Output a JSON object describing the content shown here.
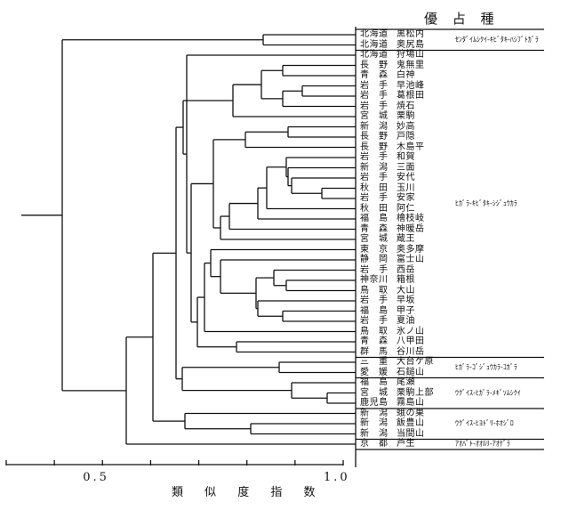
{
  "header": "優 占 種",
  "rows": [
    [
      "北海道",
      "黒松内"
    ],
    [
      "北海道",
      "奥尻島"
    ],
    [
      "北海道",
      "狩場山"
    ],
    [
      "長　野",
      "鬼無里"
    ],
    [
      "青　森",
      "白神"
    ],
    [
      "岩　手",
      "早池峰"
    ],
    [
      "岩　手",
      "葛根田"
    ],
    [
      "岩　手",
      "焼石"
    ],
    [
      "宮　城",
      "栗駒"
    ],
    [
      "新　潟",
      "妙高"
    ],
    [
      "長　野",
      "戸隠"
    ],
    [
      "長　野",
      "木島平"
    ],
    [
      "岩　手",
      "和賀"
    ],
    [
      "新　潟",
      "三面"
    ],
    [
      "岩　手",
      "安代"
    ],
    [
      "秋　田",
      "玉川"
    ],
    [
      "岩　手",
      "安家"
    ],
    [
      "秋　田",
      "阿仁"
    ],
    [
      "福　島",
      "檜枝岐"
    ],
    [
      "青　森",
      "神暖岳"
    ],
    [
      "宮　城",
      "蔵王"
    ],
    [
      "東　京",
      "奥多摩"
    ],
    [
      "静　岡",
      "富士山"
    ],
    [
      "岩　手",
      "西岳"
    ],
    [
      "神奈川",
      "箱根"
    ],
    [
      "鳥　取",
      "大山"
    ],
    [
      "岩　手",
      "早坂"
    ],
    [
      "福　島",
      "甲子"
    ],
    [
      "岩　手",
      "夏油"
    ],
    [
      "鳥　取",
      "氷ノ山"
    ],
    [
      "青　森",
      "八甲田"
    ],
    [
      "群　馬",
      "谷川岳"
    ],
    [
      "三　重",
      "大台ケ原"
    ],
    [
      "愛　媛",
      "石鎚山"
    ],
    [
      "福　島",
      "尾瀬"
    ],
    [
      "宮　城",
      "栗駒上部"
    ],
    [
      "鹿児島",
      "霧島山"
    ],
    [
      "新　潟",
      "蛾の巣"
    ],
    [
      "新　潟",
      "飯豊山"
    ],
    [
      "新　潟",
      "当間山"
    ],
    [
      "京　都",
      "芦生"
    ]
  ],
  "groups": [
    {
      "species": "ｾﾝﾀﾞｲﾑｼｸｲ-ｷﾋﾞﾀｷ-ﾊｼﾌﾞﾄｶﾞﾗ"
    },
    {
      "species": "ﾋｶﾞﾗ-ｷﾋﾞﾀｷ-ｼｼﾞｭｳｶﾗ"
    },
    {
      "species": "ﾋｶﾞﾗ-ｺﾞｼﾞｭｳｶﾗ-ｺｶﾞﾗ"
    },
    {
      "species": "ｳｸﾞｲｽ-ﾋｶﾞﾗ-ﾒｷﾞｿﾑｼｸｲ"
    },
    {
      "species": "ｳｸﾞｲｽ-ﾋﾖﾄﾞﾘ-ﾎｵｼﾞﾛ"
    },
    {
      "species": "ｱｵﾊﾞﾄ-ｵｵﾙﾘ-ｱｵｹﾞﾗ"
    }
  ],
  "axis": {
    "title": "類 似 度 指 数",
    "ticks": [
      {
        "label": "0.5",
        "value": 0.5
      },
      {
        "label": "1.0",
        "value": 1.0
      }
    ]
  }
}
